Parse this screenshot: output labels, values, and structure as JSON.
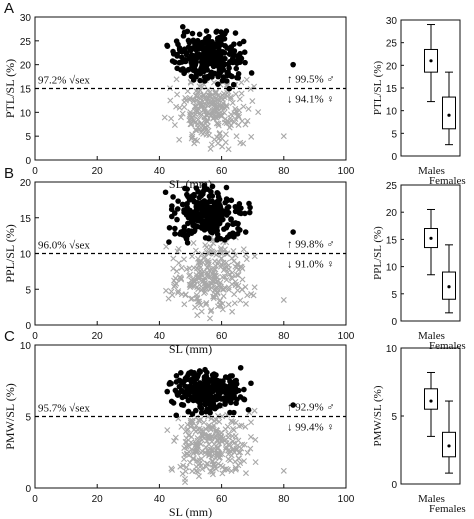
{
  "panels": [
    {
      "panel_label": "A",
      "scatter": {
        "ylabel": "PTL/SL (%)",
        "xlabel": "SL (mm)",
        "xlim": [
          0,
          100
        ],
        "ylim": [
          0,
          30
        ],
        "xticks": [
          0,
          20,
          40,
          60,
          80,
          100
        ],
        "yticks": [
          0,
          5,
          10,
          15,
          20,
          25,
          30
        ],
        "threshold": 15,
        "sexing_text": "97.2% √sex",
        "male_text": "↑ 99.5% ♂",
        "female_text": "↓ 94.1% ♀",
        "male_cloud": {
          "x_min": 40,
          "x_max": 73,
          "y_min": 12,
          "y_max": 29
        },
        "female_cloud": {
          "x_min": 41,
          "x_max": 72,
          "y_min": 2,
          "y_max": 19
        },
        "outliers_male": [
          [
            83,
            20
          ]
        ],
        "outliers_female": [
          [
            80,
            5
          ]
        ]
      },
      "box": {
        "ylabel": "PTL/SL (%)",
        "ylim": [
          0,
          30
        ],
        "yticks": [
          0,
          5,
          10,
          15,
          20,
          25,
          30
        ],
        "categories": [
          "Males",
          "Females"
        ],
        "stats": [
          {
            "min": 12,
            "q1": 18.5,
            "median": 21.5,
            "q3": 23.5,
            "max": 29,
            "mean": 21
          },
          {
            "min": 2.5,
            "q1": 6,
            "median": 9,
            "q3": 13,
            "max": 18.5,
            "mean": 9
          }
        ]
      }
    },
    {
      "panel_label": "B",
      "scatter": {
        "ylabel": "PPL/SL (%)",
        "xlabel": "SL (mm)",
        "xlim": [
          0,
          100
        ],
        "ylim": [
          0,
          20
        ],
        "xticks": [
          0,
          20,
          40,
          60,
          80,
          100
        ],
        "yticks": [
          0,
          5,
          10,
          15,
          20
        ],
        "threshold": 10,
        "sexing_text": "96.0% √sex",
        "male_text": "↑ 99.8% ♂",
        "female_text": "↓ 91.0% ♀",
        "male_cloud": {
          "x_min": 40,
          "x_max": 73,
          "y_min": 9,
          "y_max": 20.5
        },
        "female_cloud": {
          "x_min": 41,
          "x_max": 72,
          "y_min": 0.5,
          "y_max": 13
        },
        "outliers_male": [
          [
            83,
            13
          ]
        ],
        "outliers_female": [
          [
            80,
            3.5
          ]
        ]
      },
      "box": {
        "ylabel": "PPL/SL (%)",
        "ylim": [
          0,
          25
        ],
        "yticks": [
          0,
          5,
          10,
          15,
          20,
          25
        ],
        "categories": [
          "Males",
          "Females"
        ],
        "stats": [
          {
            "min": 8.5,
            "q1": 13.5,
            "median": 15.5,
            "q3": 17,
            "max": 20.5,
            "mean": 15.2
          },
          {
            "min": 1.5,
            "q1": 4,
            "median": 6.5,
            "q3": 9,
            "max": 14,
            "mean": 6.3
          }
        ]
      }
    },
    {
      "panel_label": "C",
      "scatter": {
        "ylabel": "PMW/SL (%)",
        "xlabel": "SL (mm)",
        "xlim": [
          0,
          100
        ],
        "ylim": [
          0,
          10
        ],
        "xticks": [
          0,
          20,
          40,
          60,
          80,
          100
        ],
        "yticks": [
          0,
          5,
          10
        ],
        "threshold": 5,
        "sexing_text": "95.7% √sex",
        "male_text": "↑ 92.9% ♂",
        "female_text": "↓ 99.4% ♀",
        "male_cloud": {
          "x_min": 40,
          "x_max": 73,
          "y_min": 4.2,
          "y_max": 8.8
        },
        "female_cloud": {
          "x_min": 41,
          "x_max": 72,
          "y_min": 0.3,
          "y_max": 6
        },
        "outliers_male": [
          [
            83,
            5.8
          ]
        ],
        "outliers_female": [
          [
            80,
            1.2
          ]
        ]
      },
      "box": {
        "ylabel": "PMW/SL (%)",
        "ylim": [
          0,
          10
        ],
        "yticks": [
          0,
          5,
          10
        ],
        "categories": [
          "Males",
          "Females"
        ],
        "stats": [
          {
            "min": 3.5,
            "q1": 5.5,
            "median": 6.2,
            "q3": 7,
            "max": 8.2,
            "mean": 6.1
          },
          {
            "min": 0.8,
            "q1": 2,
            "median": 2.8,
            "q3": 3.8,
            "max": 6.1,
            "mean": 2.8
          }
        ]
      }
    }
  ],
  "colors": {
    "male_marker": "#000000",
    "female_marker": "#a8a8a8",
    "axis": "#111111"
  },
  "chart_data": [
    {
      "type": "scatter",
      "xlabel": "SL (mm)",
      "ylabel": "PTL/SL (%)",
      "xlim": [
        0,
        100
      ],
      "ylim": [
        0,
        30
      ],
      "threshold": 15,
      "series": [
        {
          "marker": "filled-circle",
          "values": "cloud x 40-73, y 12-29"
        },
        {
          "marker": "x",
          "values": "cloud x 41-72, y 2-19"
        }
      ]
    },
    {
      "type": "box",
      "ylabel": "PTL/SL (%)",
      "categories": [
        "Males",
        "Females"
      ],
      "ylim": [
        0,
        30
      ]
    },
    {
      "type": "scatter",
      "xlabel": "SL (mm)",
      "ylabel": "PPL/SL (%)",
      "xlim": [
        0,
        100
      ],
      "ylim": [
        0,
        20
      ],
      "threshold": 10
    },
    {
      "type": "box",
      "ylabel": "PPL/SL (%)",
      "categories": [
        "Males",
        "Females"
      ],
      "ylim": [
        0,
        25
      ]
    },
    {
      "type": "scatter",
      "xlabel": "SL (mm)",
      "ylabel": "PMW/SL (%)",
      "xlim": [
        0,
        100
      ],
      "ylim": [
        0,
        10
      ],
      "threshold": 5
    },
    {
      "type": "box",
      "ylabel": "PMW/SL (%)",
      "categories": [
        "Males",
        "Females"
      ],
      "ylim": [
        0,
        10
      ]
    }
  ]
}
